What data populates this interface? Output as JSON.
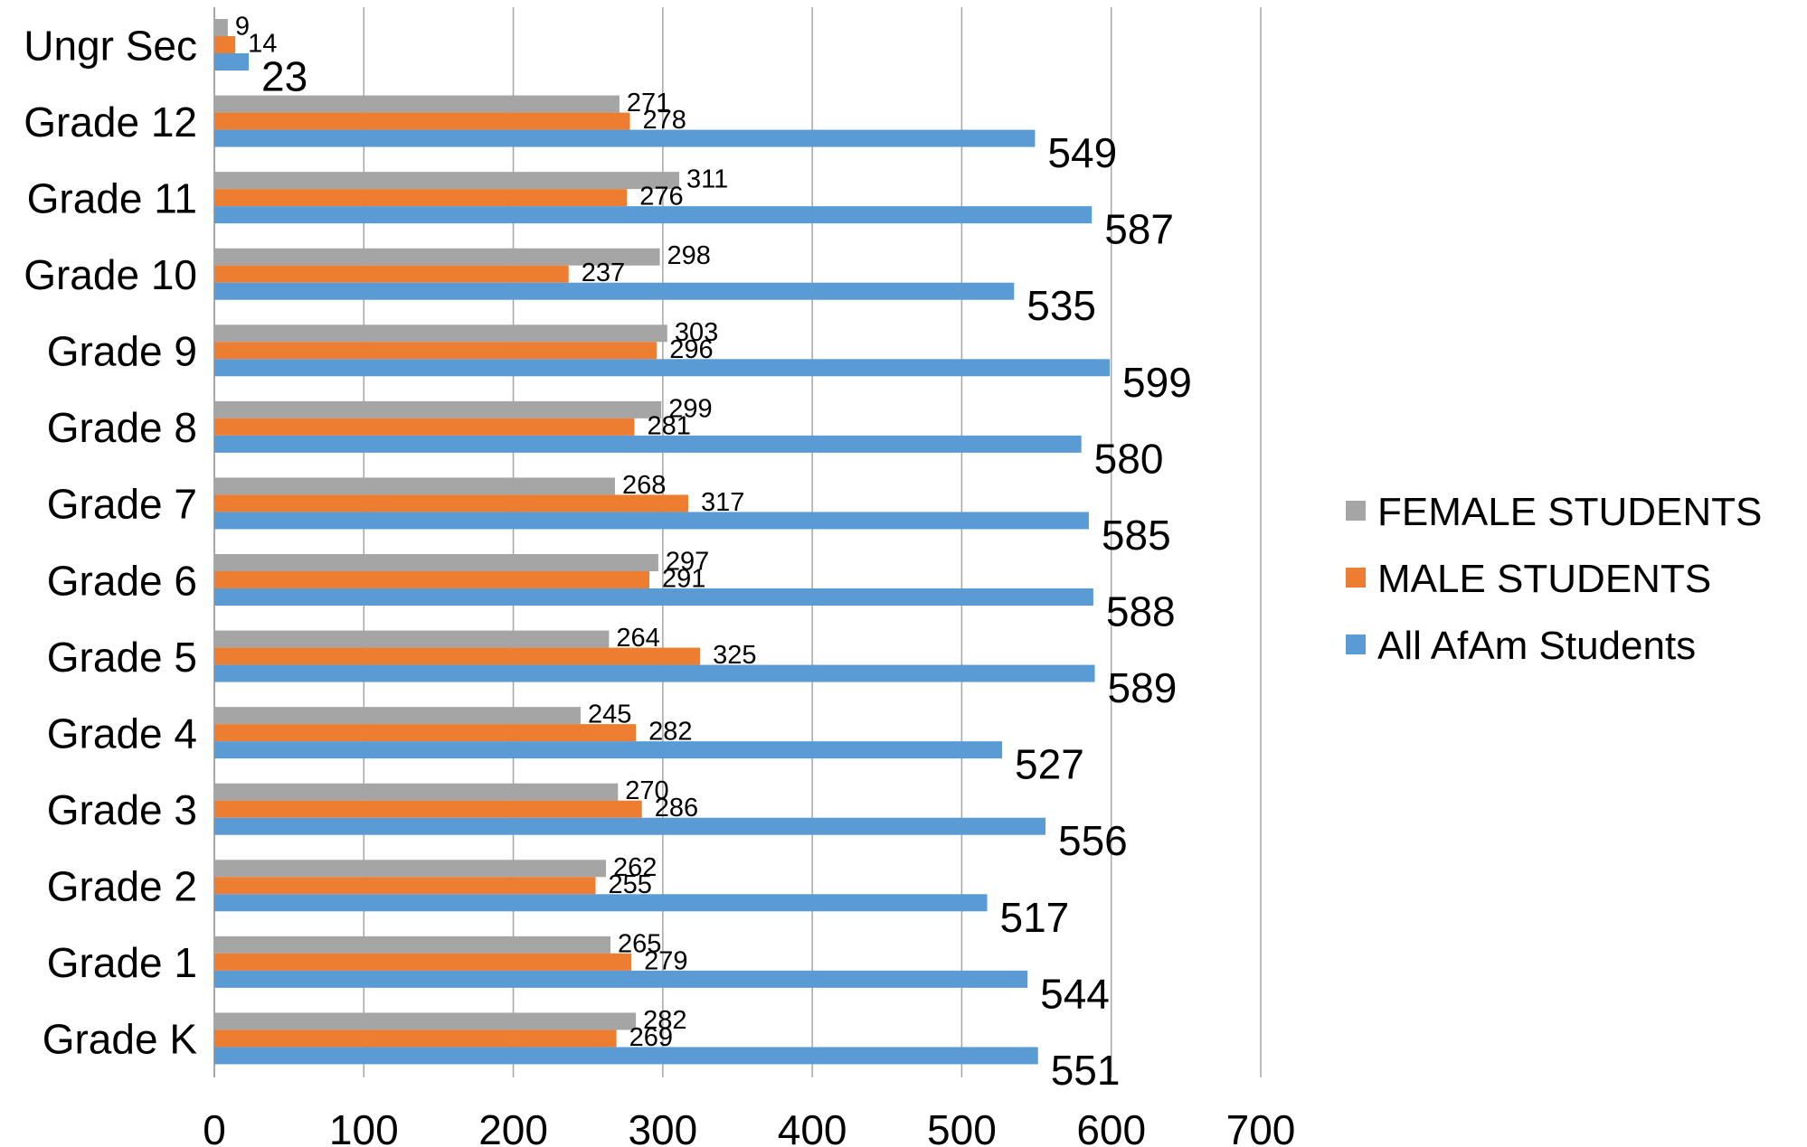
{
  "chart_data": {
    "type": "bar",
    "orientation": "horizontal",
    "categories": [
      "Ungr Sec",
      "Grade 12",
      "Grade 11",
      "Grade 10",
      "Grade 9",
      "Grade 8",
      "Grade 7",
      "Grade 6",
      "Grade 5",
      "Grade 4",
      "Grade 3",
      "Grade 2",
      "Grade 1",
      "Grade K"
    ],
    "series": [
      {
        "name": "FEMALE STUDENTS",
        "color": "#a5a5a5",
        "values": [
          9,
          271,
          311,
          298,
          303,
          299,
          268,
          297,
          264,
          245,
          270,
          262,
          265,
          282
        ]
      },
      {
        "name": "MALE STUDENTS",
        "color": "#ed7d31",
        "values": [
          14,
          278,
          276,
          237,
          296,
          281,
          317,
          291,
          325,
          282,
          286,
          255,
          279,
          269
        ]
      },
      {
        "name": "All AfAm Students",
        "color": "#5b9bd5",
        "values": [
          23,
          549,
          587,
          535,
          599,
          580,
          585,
          588,
          589,
          527,
          556,
          517,
          544,
          551
        ]
      }
    ],
    "legend_order": [
      "FEMALE STUDENTS",
      "MALE STUDENTS",
      "All AfAm Students"
    ],
    "xlim": [
      0,
      700
    ],
    "x_ticks": [
      "0",
      "100",
      "200",
      "300",
      "400",
      "500",
      "600",
      "700"
    ],
    "grid": true,
    "legend_position": "right",
    "data_labels": true
  }
}
